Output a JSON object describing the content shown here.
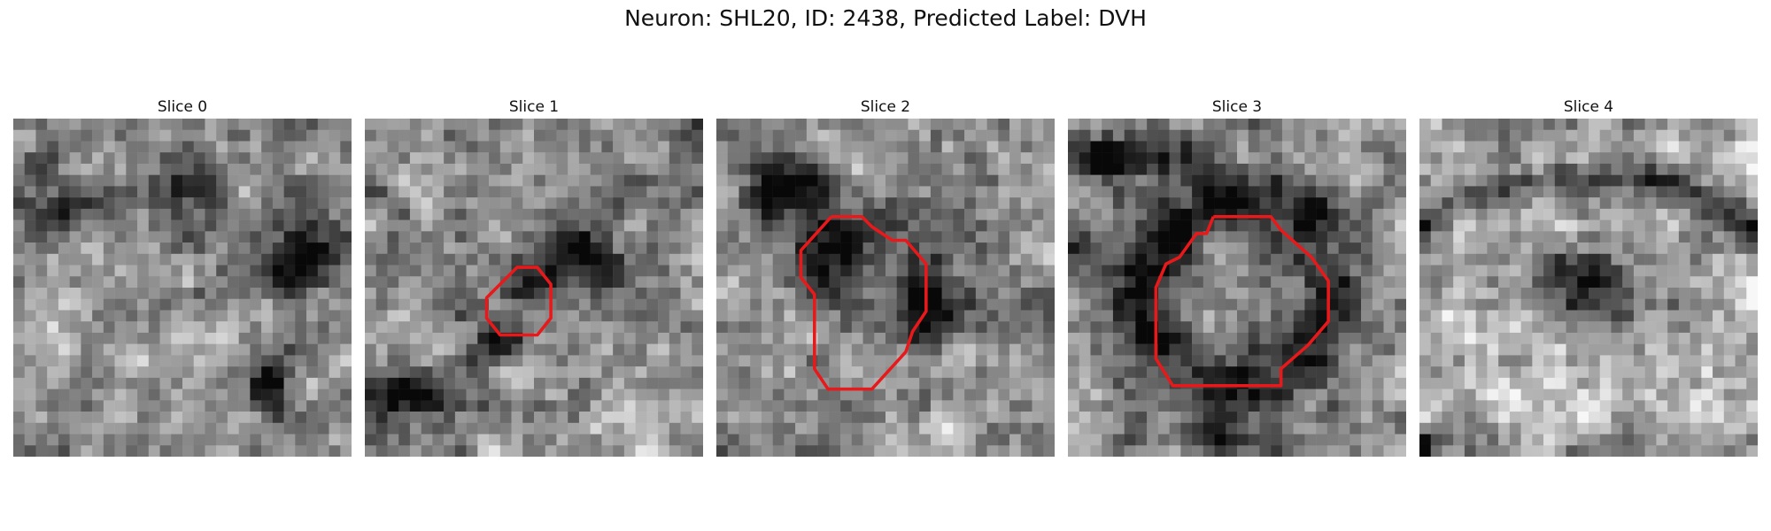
{
  "figure": {
    "title": "Neuron: SHL20, ID: 2438, Predicted Label: DVH"
  },
  "panels": [
    {
      "title": "Slice 0",
      "seed": 11,
      "dark_spots": [
        [
          0.52,
          0.22,
          0.09,
          0.09
        ],
        [
          0.83,
          0.38,
          0.13,
          0.14
        ],
        [
          0.15,
          0.28,
          0.12,
          0.07
        ],
        [
          0.75,
          0.78,
          0.07,
          0.07
        ]
      ],
      "contour": null
    },
    {
      "title": "Slice 1",
      "seed": 23,
      "dark_spots": [
        [
          0.48,
          0.48,
          0.09,
          0.09
        ],
        [
          0.65,
          0.4,
          0.11,
          0.08
        ],
        [
          0.12,
          0.82,
          0.18,
          0.06
        ],
        [
          0.4,
          0.66,
          0.07,
          0.06
        ]
      ],
      "contour": [
        [
          0.42,
          0.47
        ],
        [
          0.45,
          0.44
        ],
        [
          0.51,
          0.44
        ],
        [
          0.55,
          0.49
        ],
        [
          0.55,
          0.59
        ],
        [
          0.51,
          0.64
        ],
        [
          0.4,
          0.64
        ],
        [
          0.36,
          0.59
        ],
        [
          0.36,
          0.53
        ],
        [
          0.42,
          0.47
        ]
      ]
    },
    {
      "title": "Slice 2",
      "seed": 37,
      "dark_spots": [
        [
          0.35,
          0.38,
          0.14,
          0.12
        ],
        [
          0.62,
          0.5,
          0.1,
          0.2
        ],
        [
          0.22,
          0.22,
          0.12,
          0.1
        ]
      ],
      "contour": [
        [
          0.34,
          0.29
        ],
        [
          0.43,
          0.29
        ],
        [
          0.46,
          0.32
        ],
        [
          0.52,
          0.36
        ],
        [
          0.56,
          0.36
        ],
        [
          0.62,
          0.43
        ],
        [
          0.62,
          0.57
        ],
        [
          0.58,
          0.63
        ],
        [
          0.56,
          0.69
        ],
        [
          0.46,
          0.8
        ],
        [
          0.33,
          0.8
        ],
        [
          0.29,
          0.74
        ],
        [
          0.29,
          0.52
        ],
        [
          0.25,
          0.47
        ],
        [
          0.25,
          0.39
        ],
        [
          0.34,
          0.29
        ]
      ]
    },
    {
      "title": "Slice 3",
      "seed": 51,
      "ring": [
        0.5,
        0.52,
        0.28,
        0.1
      ],
      "dark_spots": [
        [
          0.15,
          0.12,
          0.22,
          0.06
        ],
        [
          0.45,
          0.95,
          0.2,
          0.05
        ]
      ],
      "contour": [
        [
          0.43,
          0.29
        ],
        [
          0.6,
          0.29
        ],
        [
          0.63,
          0.33
        ],
        [
          0.72,
          0.41
        ],
        [
          0.77,
          0.48
        ],
        [
          0.77,
          0.6
        ],
        [
          0.71,
          0.67
        ],
        [
          0.63,
          0.74
        ],
        [
          0.63,
          0.79
        ],
        [
          0.31,
          0.79
        ],
        [
          0.26,
          0.71
        ],
        [
          0.26,
          0.5
        ],
        [
          0.29,
          0.43
        ],
        [
          0.33,
          0.41
        ],
        [
          0.38,
          0.34
        ],
        [
          0.41,
          0.34
        ],
        [
          0.43,
          0.29
        ]
      ]
    },
    {
      "title": "Slice 4",
      "seed": 67,
      "arc": true,
      "dark_spots": [
        [
          0.5,
          0.5,
          0.12,
          0.12
        ],
        [
          0.02,
          0.96,
          0.04,
          0.04
        ]
      ],
      "contour": null
    }
  ],
  "colors": {
    "contour": "#e8191b"
  }
}
